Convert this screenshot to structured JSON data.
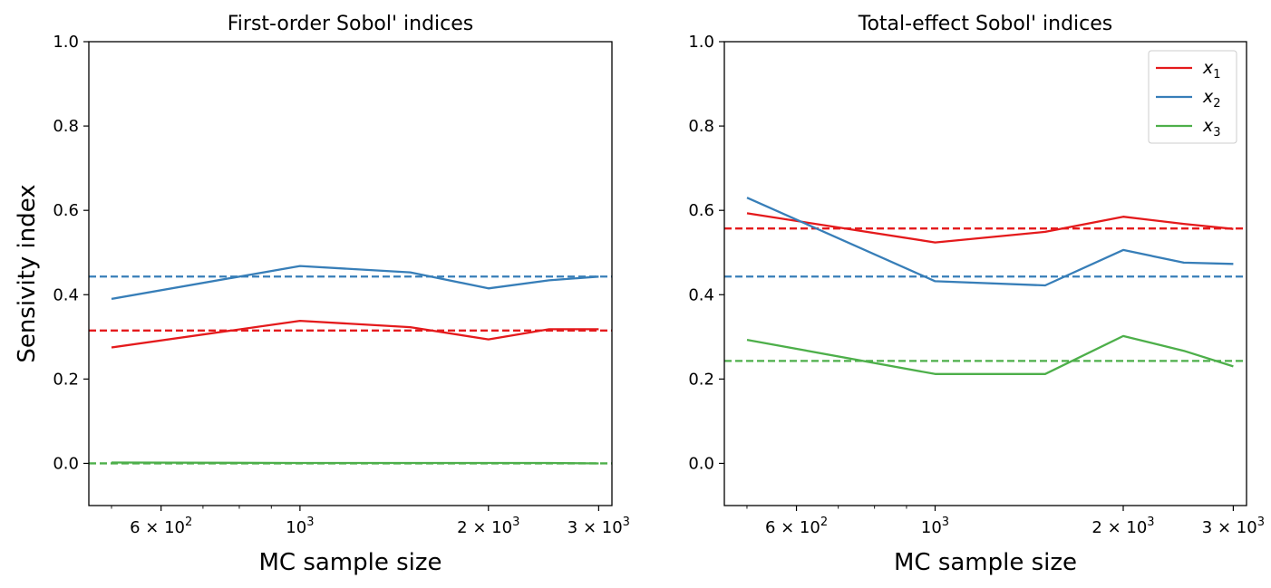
{
  "figure": {
    "ylabel": "Sensivity index"
  },
  "chart_data": [
    {
      "type": "line",
      "title": "First-order Sobol' indices",
      "xlabel": "MC sample size",
      "ylabel": "Sensivity index",
      "xscale": "log",
      "xlim": [
        460,
        3150
      ],
      "ylim": [
        -0.1,
        1.0
      ],
      "yticks": [
        0.0,
        0.2,
        0.4,
        0.6,
        0.8,
        1.0
      ],
      "ytick_labels": [
        "0.0",
        "0.2",
        "0.4",
        "0.6",
        "0.8",
        "1.0"
      ],
      "xticks": [
        600,
        1000,
        2000,
        3000
      ],
      "xtick_labels": [
        {
          "base": "6",
          "sup": "2"
        },
        {
          "base": "",
          "sup": "3"
        },
        {
          "base": "2",
          "sup": "3"
        },
        {
          "base": "3",
          "sup": "3"
        }
      ],
      "x": [
        500,
        1000,
        1500,
        2000,
        2500,
        3000
      ],
      "series": [
        {
          "name": "x1",
          "color": "#e41a1c",
          "values": [
            0.275,
            0.338,
            0.323,
            0.294,
            0.318,
            0.318
          ],
          "reference": 0.315
        },
        {
          "name": "x2",
          "color": "#377eb8",
          "values": [
            0.39,
            0.468,
            0.453,
            0.415,
            0.434,
            0.443
          ],
          "reference": 0.443
        },
        {
          "name": "x3",
          "color": "#4daf4a",
          "values": [
            0.002,
            0.001,
            0.001,
            0.001,
            0.001,
            0.0
          ],
          "reference": 0.0
        }
      ],
      "grid": false,
      "legend": false
    },
    {
      "type": "line",
      "title": "Total-effect Sobol' indices",
      "xlabel": "MC sample size",
      "xscale": "log",
      "xlim": [
        460,
        3150
      ],
      "ylim": [
        -0.1,
        1.0
      ],
      "yticks": [
        0.0,
        0.2,
        0.4,
        0.6,
        0.8,
        1.0
      ],
      "ytick_labels": [
        "0.0",
        "0.2",
        "0.4",
        "0.6",
        "0.8",
        "1.0"
      ],
      "xticks": [
        600,
        1000,
        2000,
        3000
      ],
      "xtick_labels": [
        {
          "base": "6",
          "sup": "2"
        },
        {
          "base": "",
          "sup": "3"
        },
        {
          "base": "2",
          "sup": "3"
        },
        {
          "base": "3",
          "sup": "3"
        }
      ],
      "x": [
        500,
        1000,
        1500,
        2000,
        2500,
        3000
      ],
      "series": [
        {
          "name": "x1",
          "color": "#e41a1c",
          "values": [
            0.593,
            0.524,
            0.549,
            0.585,
            0.568,
            0.556
          ],
          "reference": 0.557
        },
        {
          "name": "x2",
          "color": "#377eb8",
          "values": [
            0.63,
            0.432,
            0.422,
            0.506,
            0.476,
            0.473
          ],
          "reference": 0.443
        },
        {
          "name": "x3",
          "color": "#4daf4a",
          "values": [
            0.293,
            0.212,
            0.212,
            0.302,
            0.267,
            0.23
          ],
          "reference": 0.243
        }
      ],
      "grid": false,
      "legend": true,
      "legend_position": "top-right",
      "legend_entries": [
        {
          "base": "x",
          "sub": "1",
          "color": "#e41a1c"
        },
        {
          "base": "x",
          "sub": "2",
          "color": "#377eb8"
        },
        {
          "base": "x",
          "sub": "3",
          "color": "#4daf4a"
        }
      ]
    }
  ]
}
